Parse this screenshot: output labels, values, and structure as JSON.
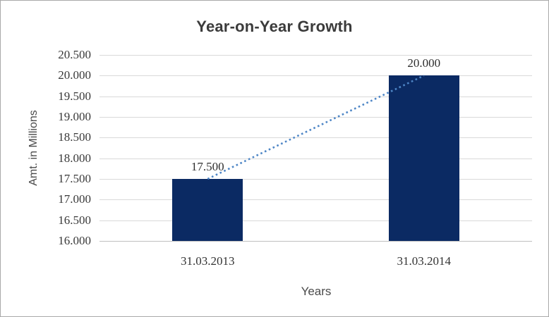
{
  "chart_data": {
    "type": "bar",
    "title": "Year-on-Year Growth",
    "xlabel": "Years",
    "ylabel": "Amt. in Millions",
    "categories": [
      "31.03.2013",
      "31.03.2014"
    ],
    "values": [
      17.5,
      20.0
    ],
    "value_labels": [
      "17.500",
      "20.000"
    ],
    "ylim": [
      16.0,
      20.5
    ],
    "ytick_step": 0.5,
    "ytick_labels_top_down": [
      "20.500",
      "20.000",
      "19.500",
      "19.000",
      "18.500",
      "18.000",
      "17.500",
      "17.000",
      "16.500",
      "16.000"
    ],
    "grid": true,
    "legend": "none",
    "trendline": {
      "style": "dotted",
      "from_value": 17.5,
      "to_value": 20.0,
      "color": "#4E86C6"
    },
    "colors": {
      "bar": "#0B2A63",
      "trend": "#4E86C6",
      "gridline": "#D9D9D9",
      "axis_line": "#BFBFBF",
      "title_text": "#3B3B3B",
      "tick_text": "#3A3A3A",
      "axis_title_text": "#4A4A4A",
      "background": "#FFFFFF",
      "frame_border": "#A9A9A9"
    }
  }
}
